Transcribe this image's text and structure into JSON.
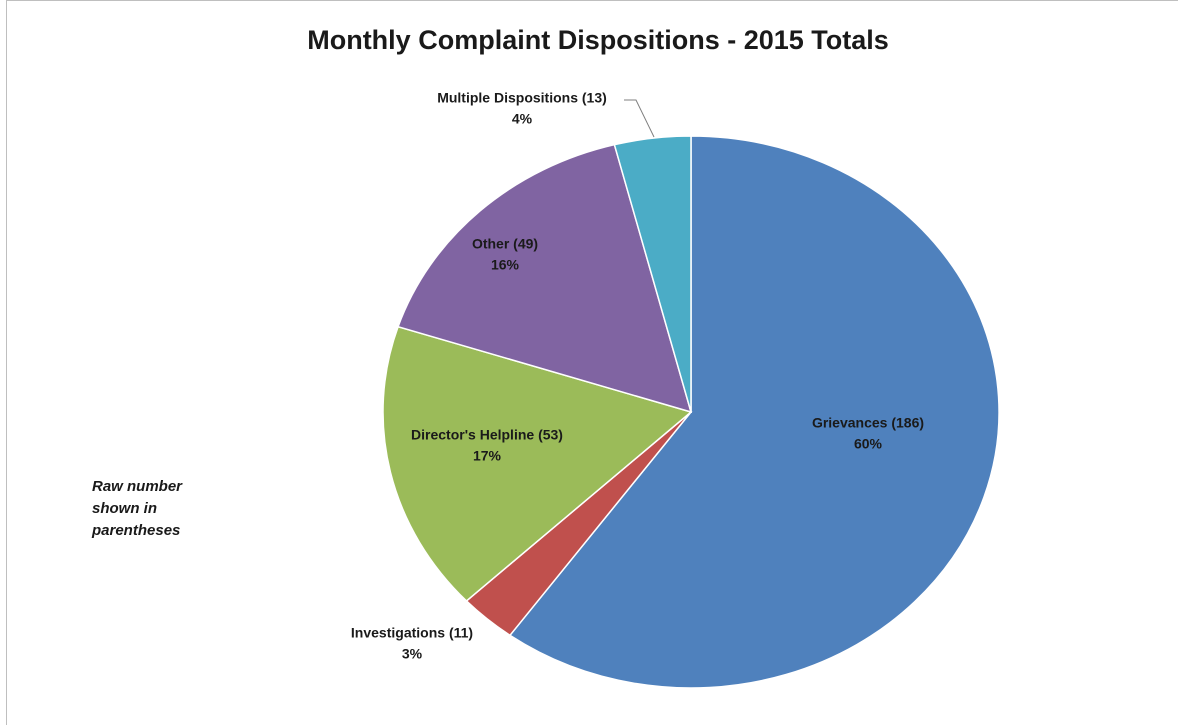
{
  "chart_data": {
    "type": "pie",
    "title": "Monthly Complaint Dispositions - 2015 Totals",
    "annotation": "Raw number shown in parentheses",
    "categories": [
      "Grievances (186)",
      "Investigations (11)",
      "Director's Helpline (53)",
      "Other (49)",
      "Multiple Dispositions (13)"
    ],
    "values": [
      60,
      3,
      17,
      16,
      4
    ],
    "value_labels": [
      "60%",
      "3%",
      "17%",
      "16%",
      "4%"
    ],
    "colors": [
      "#4f81bd",
      "#c0504d",
      "#9bbb59",
      "#8064a2",
      "#4bacc6"
    ]
  }
}
